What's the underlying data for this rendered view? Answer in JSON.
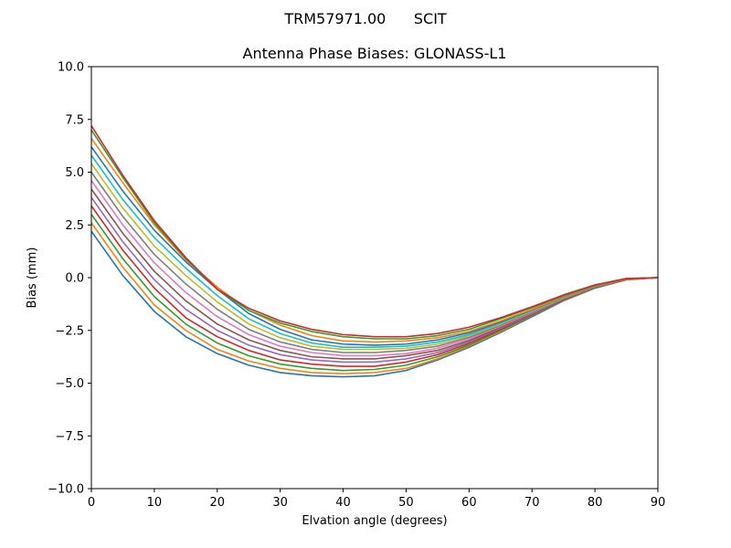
{
  "chart_data": {
    "type": "line",
    "suptitle": "TRM57971.00      SCIT",
    "title": "Antenna Phase Biases: GLONASS-L1",
    "xlabel": "Elvation angle (degrees)",
    "ylabel": "Bias (mm)",
    "xlim": [
      0,
      90
    ],
    "ylim": [
      -10,
      10
    ],
    "xticks": [
      0,
      10,
      20,
      30,
      40,
      50,
      60,
      70,
      80,
      90
    ],
    "yticks": [
      10.0,
      7.5,
      5.0,
      2.5,
      0.0,
      -2.5,
      -5.0,
      -7.5,
      -10.0
    ],
    "ytick_labels": [
      "10.0",
      "7.5",
      "5.0",
      "2.5",
      "0.0",
      "−2.5",
      "−5.0",
      "−7.5",
      "−10.0"
    ],
    "grid": false,
    "legend": "none",
    "x": [
      0,
      5,
      10,
      15,
      20,
      25,
      30,
      35,
      40,
      45,
      50,
      55,
      60,
      65,
      70,
      75,
      80,
      85,
      90
    ],
    "series": [
      {
        "values": [
          2.2,
          0.1,
          -1.6,
          -2.8,
          -3.6,
          -4.15,
          -4.5,
          -4.65,
          -4.7,
          -4.65,
          -4.4,
          -3.9,
          -3.3,
          -2.6,
          -1.85,
          -1.1,
          -0.5,
          -0.1,
          0.0
        ]
      },
      {
        "values": [
          2.6,
          0.5,
          -1.3,
          -2.5,
          -3.4,
          -3.95,
          -4.3,
          -4.5,
          -4.55,
          -4.5,
          -4.3,
          -3.85,
          -3.25,
          -2.55,
          -1.8,
          -1.08,
          -0.48,
          -0.1,
          0.0
        ]
      },
      {
        "values": [
          3.0,
          0.9,
          -0.9,
          -2.2,
          -3.1,
          -3.7,
          -4.1,
          -4.3,
          -4.4,
          -4.35,
          -4.15,
          -3.75,
          -3.2,
          -2.5,
          -1.78,
          -1.06,
          -0.47,
          -0.09,
          0.0
        ]
      },
      {
        "values": [
          3.4,
          1.3,
          -0.5,
          -1.9,
          -2.8,
          -3.45,
          -3.9,
          -4.1,
          -4.2,
          -4.2,
          -4.0,
          -3.65,
          -3.12,
          -2.45,
          -1.75,
          -1.04,
          -0.46,
          -0.09,
          0.0
        ]
      },
      {
        "values": [
          3.8,
          1.7,
          -0.1,
          -1.5,
          -2.5,
          -3.2,
          -3.65,
          -3.9,
          -4.0,
          -4.0,
          -3.85,
          -3.55,
          -3.05,
          -2.4,
          -1.72,
          -1.02,
          -0.45,
          -0.08,
          0.0
        ]
      },
      {
        "values": [
          4.2,
          2.1,
          0.3,
          -1.1,
          -2.2,
          -2.95,
          -3.45,
          -3.75,
          -3.85,
          -3.85,
          -3.7,
          -3.45,
          -2.98,
          -2.35,
          -1.68,
          -1.0,
          -0.44,
          -0.08,
          0.0
        ]
      },
      {
        "values": [
          4.6,
          2.5,
          0.7,
          -0.7,
          -1.85,
          -2.7,
          -3.25,
          -3.55,
          -3.7,
          -3.7,
          -3.6,
          -3.35,
          -2.9,
          -2.3,
          -1.65,
          -0.98,
          -0.43,
          -0.07,
          0.0
        ]
      },
      {
        "values": [
          5.0,
          2.9,
          1.1,
          -0.3,
          -1.5,
          -2.45,
          -3.05,
          -3.4,
          -3.55,
          -3.55,
          -3.45,
          -3.25,
          -2.83,
          -2.25,
          -1.62,
          -0.96,
          -0.42,
          -0.07,
          0.0
        ]
      },
      {
        "values": [
          5.4,
          3.3,
          1.5,
          0.1,
          -1.15,
          -2.2,
          -2.85,
          -3.25,
          -3.4,
          -3.4,
          -3.35,
          -3.15,
          -2.76,
          -2.2,
          -1.58,
          -0.94,
          -0.41,
          -0.06,
          0.0
        ]
      },
      {
        "values": [
          5.8,
          3.7,
          1.9,
          0.45,
          -0.85,
          -1.95,
          -2.65,
          -3.1,
          -3.3,
          -3.3,
          -3.25,
          -3.05,
          -2.7,
          -2.15,
          -1.55,
          -0.92,
          -0.4,
          -0.06,
          0.0
        ]
      },
      {
        "values": [
          6.2,
          4.1,
          2.25,
          0.75,
          -0.55,
          -1.7,
          -2.45,
          -2.95,
          -3.15,
          -3.2,
          -3.15,
          -2.95,
          -2.62,
          -2.1,
          -1.52,
          -0.9,
          -0.39,
          -0.05,
          0.0
        ]
      },
      {
        "values": [
          6.6,
          4.5,
          2.5,
          0.85,
          -0.45,
          -1.55,
          -2.25,
          -2.75,
          -3.0,
          -3.05,
          -3.0,
          -2.85,
          -2.55,
          -2.05,
          -1.5,
          -0.88,
          -0.38,
          -0.05,
          0.0
        ]
      },
      {
        "values": [
          7.0,
          4.75,
          2.6,
          0.9,
          -0.55,
          -1.55,
          -2.15,
          -2.55,
          -2.8,
          -2.9,
          -2.9,
          -2.75,
          -2.45,
          -1.95,
          -1.42,
          -0.85,
          -0.36,
          -0.04,
          0.0
        ]
      },
      {
        "values": [
          7.2,
          4.85,
          2.7,
          0.95,
          -0.55,
          -1.45,
          -2.05,
          -2.45,
          -2.7,
          -2.8,
          -2.8,
          -2.65,
          -2.35,
          -1.9,
          -1.38,
          -0.82,
          -0.34,
          -0.04,
          0.0
        ]
      }
    ]
  }
}
